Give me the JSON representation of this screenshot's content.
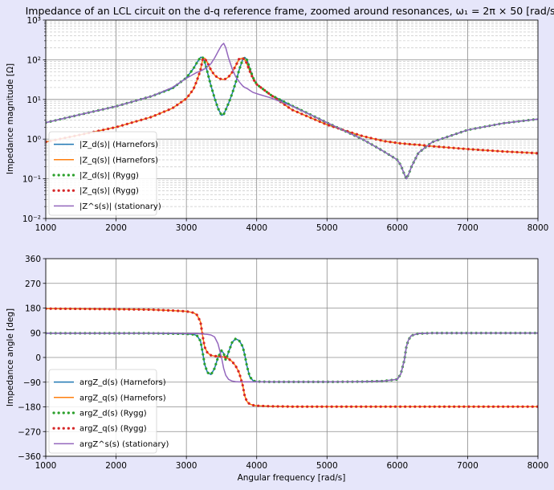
{
  "chart_data": [
    {
      "type": "line",
      "title": "Impedance of an LCL circuit on the d-q reference frame, zoomed around resonances, ω₁ = 2π × 50 [rad/s]",
      "xlabel": "",
      "ylabel": "Impedance magnitude [Ω]",
      "xlim": [
        1000,
        8000
      ],
      "ylim": [
        0.01,
        1000
      ],
      "yscale": "log",
      "grid": true,
      "legend_position": "lower-left",
      "x_ticks": [
        "1000",
        "2000",
        "3000",
        "4000",
        "5000",
        "6000",
        "7000",
        "8000"
      ],
      "y_ticks": [
        "10⁻²",
        "10⁻¹",
        "10⁰",
        "10¹",
        "10²",
        "10³"
      ],
      "x": [
        1000,
        1500,
        2000,
        2500,
        2800,
        3000,
        3100,
        3150,
        3200,
        3230,
        3260,
        3300,
        3350,
        3400,
        3450,
        3500,
        3530,
        3560,
        3600,
        3650,
        3700,
        3750,
        3800,
        3830,
        3860,
        3900,
        3950,
        4000,
        4200,
        4500,
        5000,
        5500,
        5800,
        6000,
        6050,
        6100,
        6130,
        6160,
        6200,
        6300,
        6500,
        7000,
        7500,
        8000
      ],
      "series": [
        {
          "name": "|Z_d(s)| (Harnefors)",
          "color": "#1f77b4",
          "style": "solid",
          "values": [
            2.6,
            4.2,
            6.7,
            12,
            19,
            35,
            60,
            85,
            115,
            115,
            90,
            48,
            22,
            11,
            6,
            4,
            4.2,
            5.5,
            8,
            14,
            26,
            55,
            100,
            115,
            100,
            62,
            35,
            24,
            13,
            7,
            2.6,
            1.0,
            0.5,
            0.3,
            0.22,
            0.13,
            0.1,
            0.13,
            0.2,
            0.45,
            0.85,
            1.7,
            2.5,
            3.2
          ]
        },
        {
          "name": "|Z_q(s)| (Harnefors)",
          "color": "#ff7f0e",
          "style": "solid",
          "values": [
            0.85,
            1.3,
            2.0,
            3.6,
            6,
            10.5,
            18,
            30,
            55,
            100,
            110,
            85,
            55,
            41,
            35,
            32,
            32,
            33,
            37,
            48,
            70,
            105,
            110,
            100,
            80,
            52,
            33,
            24,
            13,
            5.5,
            2.3,
            1.2,
            0.9,
            0.8,
            0.78,
            0.77,
            0.76,
            0.75,
            0.74,
            0.72,
            0.66,
            0.56,
            0.49,
            0.44
          ]
        },
        {
          "name": "|Z_d(s)| (Rygg)",
          "color": "#2ca02c",
          "style": "dotted",
          "values": [
            2.6,
            4.2,
            6.7,
            12,
            19,
            35,
            60,
            85,
            115,
            115,
            90,
            48,
            22,
            11,
            6,
            4,
            4.2,
            5.5,
            8,
            14,
            26,
            55,
            100,
            115,
            100,
            62,
            35,
            24,
            13,
            7,
            2.6,
            1.0,
            0.5,
            0.3,
            0.22,
            0.13,
            0.1,
            0.13,
            0.2,
            0.45,
            0.85,
            1.7,
            2.5,
            3.2
          ]
        },
        {
          "name": "|Z_q(s)| (Rygg)",
          "color": "#d62728",
          "style": "dotted",
          "values": [
            0.85,
            1.3,
            2.0,
            3.6,
            6,
            10.5,
            18,
            30,
            55,
            100,
            110,
            85,
            55,
            41,
            35,
            32,
            32,
            33,
            37,
            48,
            70,
            105,
            110,
            100,
            80,
            52,
            33,
            24,
            13,
            5.5,
            2.3,
            1.2,
            0.9,
            0.8,
            0.78,
            0.77,
            0.76,
            0.75,
            0.74,
            0.72,
            0.66,
            0.56,
            0.49,
            0.44
          ]
        },
        {
          "name": "|Z^s(s)| (stationary)",
          "color": "#9467bd",
          "style": "solid",
          "values": [
            2.6,
            4.2,
            6.7,
            12,
            20,
            34,
            43,
            48,
            52,
            55,
            59,
            66,
            80,
            110,
            160,
            230,
            260,
            200,
            110,
            60,
            38,
            28,
            22,
            20,
            19,
            17,
            15,
            14,
            11,
            6.8,
            2.6,
            1.0,
            0.5,
            0.3,
            0.22,
            0.13,
            0.1,
            0.13,
            0.2,
            0.45,
            0.85,
            1.7,
            2.5,
            3.2
          ]
        }
      ]
    },
    {
      "type": "line",
      "title": "",
      "xlabel": "Angular frequency [rad/s]",
      "ylabel": "Impedance angle [deg]",
      "xlim": [
        1000,
        8000
      ],
      "ylim": [
        -360,
        360
      ],
      "grid": true,
      "legend_position": "lower-left",
      "x_ticks": [
        "1000",
        "2000",
        "3000",
        "4000",
        "5000",
        "6000",
        "7000",
        "8000"
      ],
      "y_ticks": [
        "360",
        "270",
        "180",
        "90",
        "0",
        "−90",
        "−180",
        "−270",
        "−360"
      ],
      "x": [
        1000,
        1500,
        2000,
        2500,
        2800,
        3000,
        3100,
        3150,
        3200,
        3230,
        3260,
        3300,
        3350,
        3400,
        3450,
        3500,
        3530,
        3560,
        3600,
        3650,
        3700,
        3750,
        3800,
        3830,
        3860,
        3900,
        3950,
        4000,
        4200,
        4500,
        5000,
        5500,
        5800,
        6000,
        6050,
        6100,
        6130,
        6160,
        6200,
        6300,
        6500,
        7000,
        7500,
        8000
      ],
      "series": [
        {
          "name": "argZ_d(s) (Harnefors)",
          "color": "#1f77b4",
          "style": "solid",
          "values": [
            88,
            88,
            88,
            88,
            87,
            86,
            84,
            80,
            60,
            20,
            -25,
            -55,
            -62,
            -40,
            0,
            25,
            15,
            -10,
            20,
            55,
            68,
            62,
            40,
            10,
            -30,
            -70,
            -85,
            -88,
            -89,
            -89,
            -89,
            -88,
            -86,
            -80,
            -60,
            -10,
            40,
            65,
            80,
            87,
            89,
            89,
            89,
            89
          ]
        },
        {
          "name": "argZ_q(s) (Harnefors)",
          "color": "#ff7f0e",
          "style": "solid",
          "values": [
            178,
            177,
            176,
            174,
            171,
            168,
            163,
            155,
            130,
            80,
            38,
            17,
            8,
            5,
            4,
            3,
            2,
            0,
            -5,
            -15,
            -30,
            -55,
            -100,
            -140,
            -160,
            -170,
            -174,
            -176,
            -178,
            -179,
            -179,
            -179,
            -179,
            -179,
            -179,
            -179,
            -179,
            -179,
            -179,
            -179,
            -179,
            -179,
            -179,
            -179
          ]
        },
        {
          "name": "argZ_d(s) (Rygg)",
          "color": "#2ca02c",
          "style": "dotted",
          "values": [
            88,
            88,
            88,
            88,
            87,
            86,
            84,
            80,
            60,
            20,
            -25,
            -55,
            -62,
            -40,
            0,
            25,
            15,
            -10,
            20,
            55,
            68,
            62,
            40,
            10,
            -30,
            -70,
            -85,
            -88,
            -89,
            -89,
            -89,
            -88,
            -86,
            -80,
            -60,
            -10,
            40,
            65,
            80,
            87,
            89,
            89,
            89,
            89
          ]
        },
        {
          "name": "argZ_q(s) (Rygg)",
          "color": "#d62728",
          "style": "dotted",
          "values": [
            178,
            177,
            176,
            174,
            171,
            168,
            163,
            155,
            130,
            80,
            38,
            17,
            8,
            5,
            4,
            3,
            2,
            0,
            -5,
            -15,
            -30,
            -55,
            -100,
            -140,
            -160,
            -170,
            -174,
            -176,
            -178,
            -179,
            -179,
            -179,
            -179,
            -179,
            -179,
            -179,
            -179,
            -179,
            -179,
            -179,
            -179,
            -179,
            -179,
            -179
          ]
        },
        {
          "name": "argZ^s(s) (stationary)",
          "color": "#9467bd",
          "style": "solid",
          "values": [
            88,
            88,
            88,
            88,
            88,
            87,
            87,
            87,
            86,
            86,
            85,
            84,
            82,
            75,
            50,
            0,
            -40,
            -65,
            -80,
            -86,
            -88,
            -89,
            -89,
            -89,
            -89,
            -89,
            -89,
            -89,
            -89,
            -89,
            -89,
            -88,
            -86,
            -80,
            -60,
            -10,
            40,
            65,
            80,
            87,
            89,
            89,
            89,
            89
          ]
        }
      ]
    }
  ]
}
